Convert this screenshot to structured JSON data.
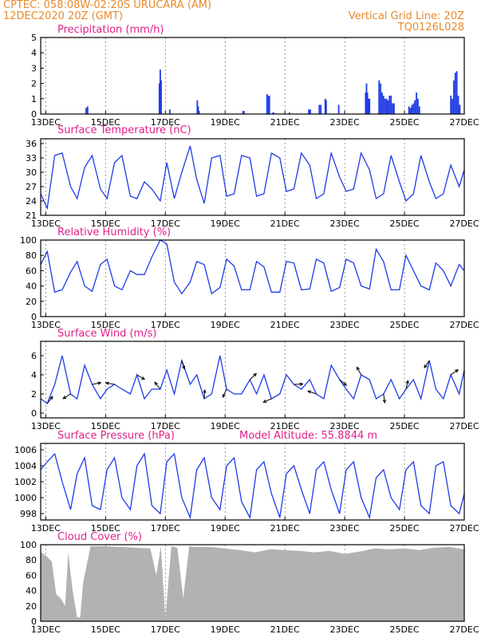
{
  "header": {
    "line1": "CPTEC:   058:08W-02:20S   URUCARA (AM)",
    "line2": "12DEC2020 20Z (GMT)",
    "vgrid": "Vertical Grid Line: 20Z",
    "code": "TQ0126L028"
  },
  "colors": {
    "header": "#e8892a",
    "title": "#e0208c",
    "series": "#1f3be6",
    "cloud": "#b2b2b2",
    "frame": "#000000"
  },
  "x_ticks": [
    "13DEC",
    "15DEC",
    "17DEC",
    "19DEC",
    "21DEC",
    "23DEC",
    "25DEC",
    "27DEC"
  ],
  "x_tick_days": [
    13,
    15,
    17,
    19,
    21,
    23,
    25,
    27
  ],
  "x_range_days": [
    12.83,
    27.0
  ],
  "chart_data": [
    {
      "type": "bar",
      "title": "Precipitation (mm/h)",
      "ylim": [
        0,
        5
      ],
      "yticks": [
        0,
        1,
        2,
        3,
        4,
        5
      ],
      "x_days": [
        14.35,
        14.4,
        16.8,
        16.83,
        16.86,
        17.15,
        18.07,
        18.1,
        18.13,
        19.6,
        19.63,
        20.4,
        20.45,
        20.48,
        20.6,
        20.62,
        21.15,
        21.8,
        21.85,
        22.15,
        22.2,
        22.35,
        22.38,
        22.8,
        23.7,
        23.73,
        23.76,
        23.8,
        23.83,
        24.15,
        24.2,
        24.25,
        24.3,
        24.35,
        24.4,
        24.45,
        24.5,
        24.55,
        24.6,
        24.65,
        25.15,
        25.2,
        25.25,
        25.3,
        25.35,
        25.4,
        25.45,
        25.5,
        26.55,
        26.6,
        26.65,
        26.7,
        26.75,
        26.8,
        26.85
      ],
      "values": [
        0.4,
        0.5,
        2.0,
        2.9,
        2.2,
        0.3,
        0.9,
        0.5,
        0.2,
        0.2,
        0.2,
        1.3,
        1.2,
        1.2,
        0.1,
        0.1,
        0.1,
        0.3,
        0.3,
        0.6,
        0.6,
        1.0,
        0.9,
        0.6,
        1.4,
        2.0,
        1.4,
        1.0,
        1.0,
        2.2,
        2.0,
        1.4,
        1.2,
        1.0,
        1.0,
        0.9,
        1.2,
        1.2,
        0.7,
        0.7,
        0.5,
        0.4,
        0.6,
        0.7,
        0.9,
        1.4,
        1.0,
        0.5,
        1.2,
        1.0,
        2.2,
        2.7,
        2.8,
        1.2,
        0.6
      ]
    },
    {
      "type": "line",
      "title": "Surface Temperature (nC)",
      "ylim": [
        21,
        37
      ],
      "yticks": [
        21,
        24,
        27,
        30,
        33,
        36
      ],
      "x_days": [
        12.83,
        13.05,
        13.3,
        13.55,
        13.83,
        14.05,
        14.3,
        14.55,
        14.83,
        15.05,
        15.3,
        15.55,
        15.83,
        16.05,
        16.3,
        16.55,
        16.83,
        17.05,
        17.3,
        17.55,
        17.83,
        18.05,
        18.3,
        18.55,
        18.83,
        19.05,
        19.3,
        19.55,
        19.83,
        20.05,
        20.3,
        20.55,
        20.83,
        21.05,
        21.3,
        21.55,
        21.83,
        22.05,
        22.3,
        22.55,
        22.83,
        23.05,
        23.3,
        23.55,
        23.83,
        24.05,
        24.3,
        24.55,
        24.83,
        25.05,
        25.3,
        25.55,
        25.83,
        26.05,
        26.3,
        26.55,
        26.83,
        27.0
      ],
      "values": [
        25.5,
        22.5,
        33.5,
        34.0,
        27.0,
        24.5,
        31.0,
        33.5,
        26.5,
        24.5,
        32.0,
        33.5,
        25.0,
        24.5,
        28.0,
        26.5,
        24.0,
        32.0,
        24.5,
        30.0,
        35.5,
        28.5,
        23.5,
        33.0,
        33.5,
        25.0,
        25.5,
        33.5,
        33.0,
        25.0,
        25.5,
        34.0,
        33.0,
        26.0,
        26.5,
        34.0,
        31.5,
        24.5,
        25.5,
        34.0,
        29.0,
        26.0,
        26.5,
        34.0,
        30.5,
        24.5,
        25.5,
        33.5,
        28.0,
        24.0,
        25.5,
        33.5,
        28.0,
        24.5,
        25.5,
        31.5,
        27.0,
        30.5
      ]
    },
    {
      "type": "line",
      "title": "Relative Humidity (%)",
      "ylim": [
        0,
        100
      ],
      "yticks": [
        0,
        20,
        40,
        60,
        80,
        100
      ],
      "x_days": [
        12.83,
        13.05,
        13.3,
        13.55,
        13.83,
        14.05,
        14.3,
        14.55,
        14.83,
        15.05,
        15.3,
        15.55,
        15.83,
        16.05,
        16.3,
        16.55,
        16.83,
        17.05,
        17.3,
        17.55,
        17.83,
        18.05,
        18.3,
        18.55,
        18.83,
        19.05,
        19.3,
        19.55,
        19.83,
        20.05,
        20.3,
        20.55,
        20.83,
        21.05,
        21.3,
        21.55,
        21.83,
        22.05,
        22.3,
        22.55,
        22.83,
        23.05,
        23.3,
        23.55,
        23.83,
        24.05,
        24.3,
        24.55,
        24.83,
        25.05,
        25.3,
        25.55,
        25.83,
        26.05,
        26.3,
        26.55,
        26.83,
        27.0
      ],
      "values": [
        68,
        85,
        32,
        35,
        58,
        72,
        40,
        33,
        68,
        75,
        40,
        35,
        60,
        55,
        55,
        78,
        100,
        95,
        45,
        30,
        45,
        72,
        68,
        30,
        38,
        75,
        66,
        35,
        35,
        72,
        65,
        32,
        32,
        72,
        70,
        35,
        36,
        75,
        70,
        33,
        38,
        75,
        70,
        40,
        36,
        88,
        72,
        35,
        35,
        80,
        60,
        40,
        35,
        70,
        60,
        40,
        68,
        60
      ]
    },
    {
      "type": "line",
      "title": "Surface Wind (m/s)",
      "ylim": [
        -0.5,
        7.5
      ],
      "yticks": [
        0,
        2,
        4,
        6
      ],
      "x_days": [
        12.83,
        13.05,
        13.3,
        13.55,
        13.83,
        14.05,
        14.3,
        14.55,
        14.83,
        15.05,
        15.3,
        15.55,
        15.83,
        16.05,
        16.3,
        16.55,
        16.83,
        17.05,
        17.3,
        17.55,
        17.83,
        18.05,
        18.3,
        18.55,
        18.83,
        19.05,
        19.3,
        19.55,
        19.83,
        20.05,
        20.3,
        20.55,
        20.83,
        21.05,
        21.3,
        21.55,
        21.83,
        22.05,
        22.3,
        22.55,
        22.83,
        23.05,
        23.3,
        23.55,
        23.83,
        24.05,
        24.3,
        24.55,
        24.83,
        25.05,
        25.3,
        25.55,
        25.83,
        26.05,
        26.3,
        26.55,
        26.83,
        27.0
      ],
      "values": [
        1.5,
        1.0,
        3.0,
        6.0,
        2.0,
        1.5,
        5.0,
        3.0,
        1.5,
        2.5,
        3.0,
        2.5,
        2.0,
        4.0,
        1.5,
        2.5,
        2.5,
        4.5,
        2.0,
        5.5,
        3.0,
        4.0,
        1.5,
        2.0,
        6.0,
        2.5,
        2.0,
        2.0,
        3.5,
        2.0,
        4.0,
        1.5,
        2.0,
        4.0,
        3.0,
        2.5,
        3.5,
        2.0,
        1.5,
        5.0,
        3.5,
        2.5,
        1.5,
        4.0,
        3.5,
        1.5,
        2.0,
        3.5,
        1.5,
        2.5,
        3.5,
        1.5,
        5.5,
        2.5,
        1.5,
        4.0,
        2.0,
        4.5
      ]
    },
    {
      "type": "line",
      "title": "Surface Pressure (hPa)",
      "annotation": "Model Altitude: 55.8844  m",
      "ylim": [
        997.2,
        1006.8
      ],
      "yticks": [
        998,
        1000,
        1002,
        1004,
        1006
      ],
      "x_days": [
        12.83,
        13.05,
        13.3,
        13.55,
        13.83,
        14.05,
        14.3,
        14.55,
        14.83,
        15.05,
        15.3,
        15.55,
        15.83,
        16.05,
        16.3,
        16.55,
        16.83,
        17.05,
        17.3,
        17.55,
        17.83,
        18.05,
        18.3,
        18.55,
        18.83,
        19.05,
        19.3,
        19.55,
        19.83,
        20.05,
        20.3,
        20.55,
        20.83,
        21.05,
        21.3,
        21.55,
        21.83,
        22.05,
        22.3,
        22.55,
        22.83,
        23.05,
        23.3,
        23.55,
        23.83,
        24.05,
        24.3,
        24.55,
        24.83,
        25.05,
        25.3,
        25.55,
        25.83,
        26.05,
        26.3,
        26.55,
        26.83,
        27.0
      ],
      "values": [
        1003.5,
        1004.5,
        1005.5,
        1002.0,
        998.5,
        1003.0,
        1005.0,
        999.0,
        998.5,
        1003.5,
        1005.0,
        1000.0,
        998.5,
        1004.0,
        1005.5,
        999.0,
        998.0,
        1004.5,
        1005.5,
        1000.0,
        997.5,
        1003.5,
        1005.0,
        1000.0,
        998.5,
        1004.0,
        1005.0,
        999.5,
        997.5,
        1003.5,
        1004.5,
        1000.5,
        997.5,
        1003.0,
        1004.0,
        1001.0,
        998.0,
        1003.5,
        1004.5,
        1001.0,
        998.0,
        1003.5,
        1004.5,
        1000.0,
        997.5,
        1002.5,
        1003.5,
        1000.0,
        998.5,
        1003.5,
        1004.5,
        999.0,
        998.0,
        1004.0,
        1004.5,
        999.0,
        998.0,
        1000.5
      ]
    },
    {
      "type": "area",
      "title": "Cloud Cover (%)",
      "ylim": [
        0,
        100
      ],
      "yticks": [
        0,
        20,
        40,
        60,
        80,
        100
      ],
      "x_days": [
        12.83,
        13.0,
        13.2,
        13.35,
        13.5,
        13.65,
        13.75,
        13.9,
        14.05,
        14.15,
        14.25,
        14.35,
        14.5,
        15.0,
        15.5,
        16.0,
        16.5,
        16.7,
        16.85,
        17.0,
        17.2,
        17.4,
        17.6,
        17.8,
        18.0,
        18.5,
        19.0,
        19.5,
        20.0,
        20.5,
        21.0,
        21.5,
        22.0,
        22.5,
        23.0,
        23.5,
        24.0,
        24.5,
        25.0,
        25.5,
        26.0,
        26.5,
        26.83,
        27.0
      ],
      "values": [
        90,
        86,
        78,
        35,
        30,
        20,
        90,
        40,
        5,
        5,
        50,
        70,
        98,
        98,
        97,
        96,
        95,
        60,
        98,
        4,
        98,
        96,
        30,
        98,
        97,
        97,
        95,
        93,
        90,
        94,
        93,
        92,
        90,
        92,
        88,
        91,
        95,
        94,
        95,
        93,
        96,
        97,
        95,
        94
      ]
    }
  ]
}
